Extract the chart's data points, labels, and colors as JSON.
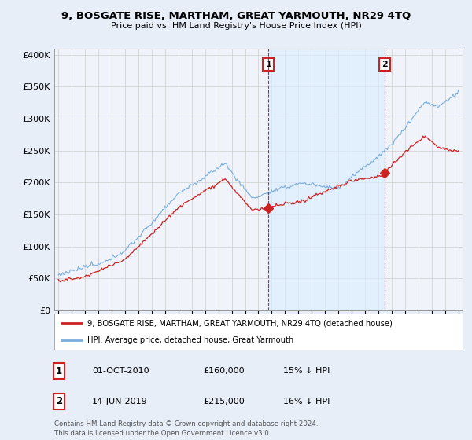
{
  "title": "9, BOSGATE RISE, MARTHAM, GREAT YARMOUTH, NR29 4TQ",
  "subtitle": "Price paid vs. HM Land Registry's House Price Index (HPI)",
  "legend_line1": "9, BOSGATE RISE, MARTHAM, GREAT YARMOUTH, NR29 4TQ (detached house)",
  "legend_line2": "HPI: Average price, detached house, Great Yarmouth",
  "annotation1": {
    "num": "1",
    "date": "01-OCT-2010",
    "price": "£160,000",
    "pct": "15% ↓ HPI"
  },
  "annotation2": {
    "num": "2",
    "date": "14-JUN-2019",
    "price": "£215,000",
    "pct": "16% ↓ HPI"
  },
  "copyright": "Contains HM Land Registry data © Crown copyright and database right 2024.\nThis data is licensed under the Open Government Licence v3.0.",
  "hpi_color": "#7aaddc",
  "price_color": "#cc2222",
  "vline_color": "#cc2222",
  "shade_color": "#ddeeff",
  "bg_color": "#e8eef8",
  "plot_bg": "#f0f4fa",
  "ylim": [
    0,
    410000
  ],
  "yticks": [
    0,
    50000,
    100000,
    150000,
    200000,
    250000,
    300000,
    350000,
    400000
  ],
  "sale1_x": 2010.75,
  "sale1_y": 160000,
  "sale2_x": 2019.45,
  "sale2_y": 215000,
  "xmin": 1995.0,
  "xmax": 2025.0
}
